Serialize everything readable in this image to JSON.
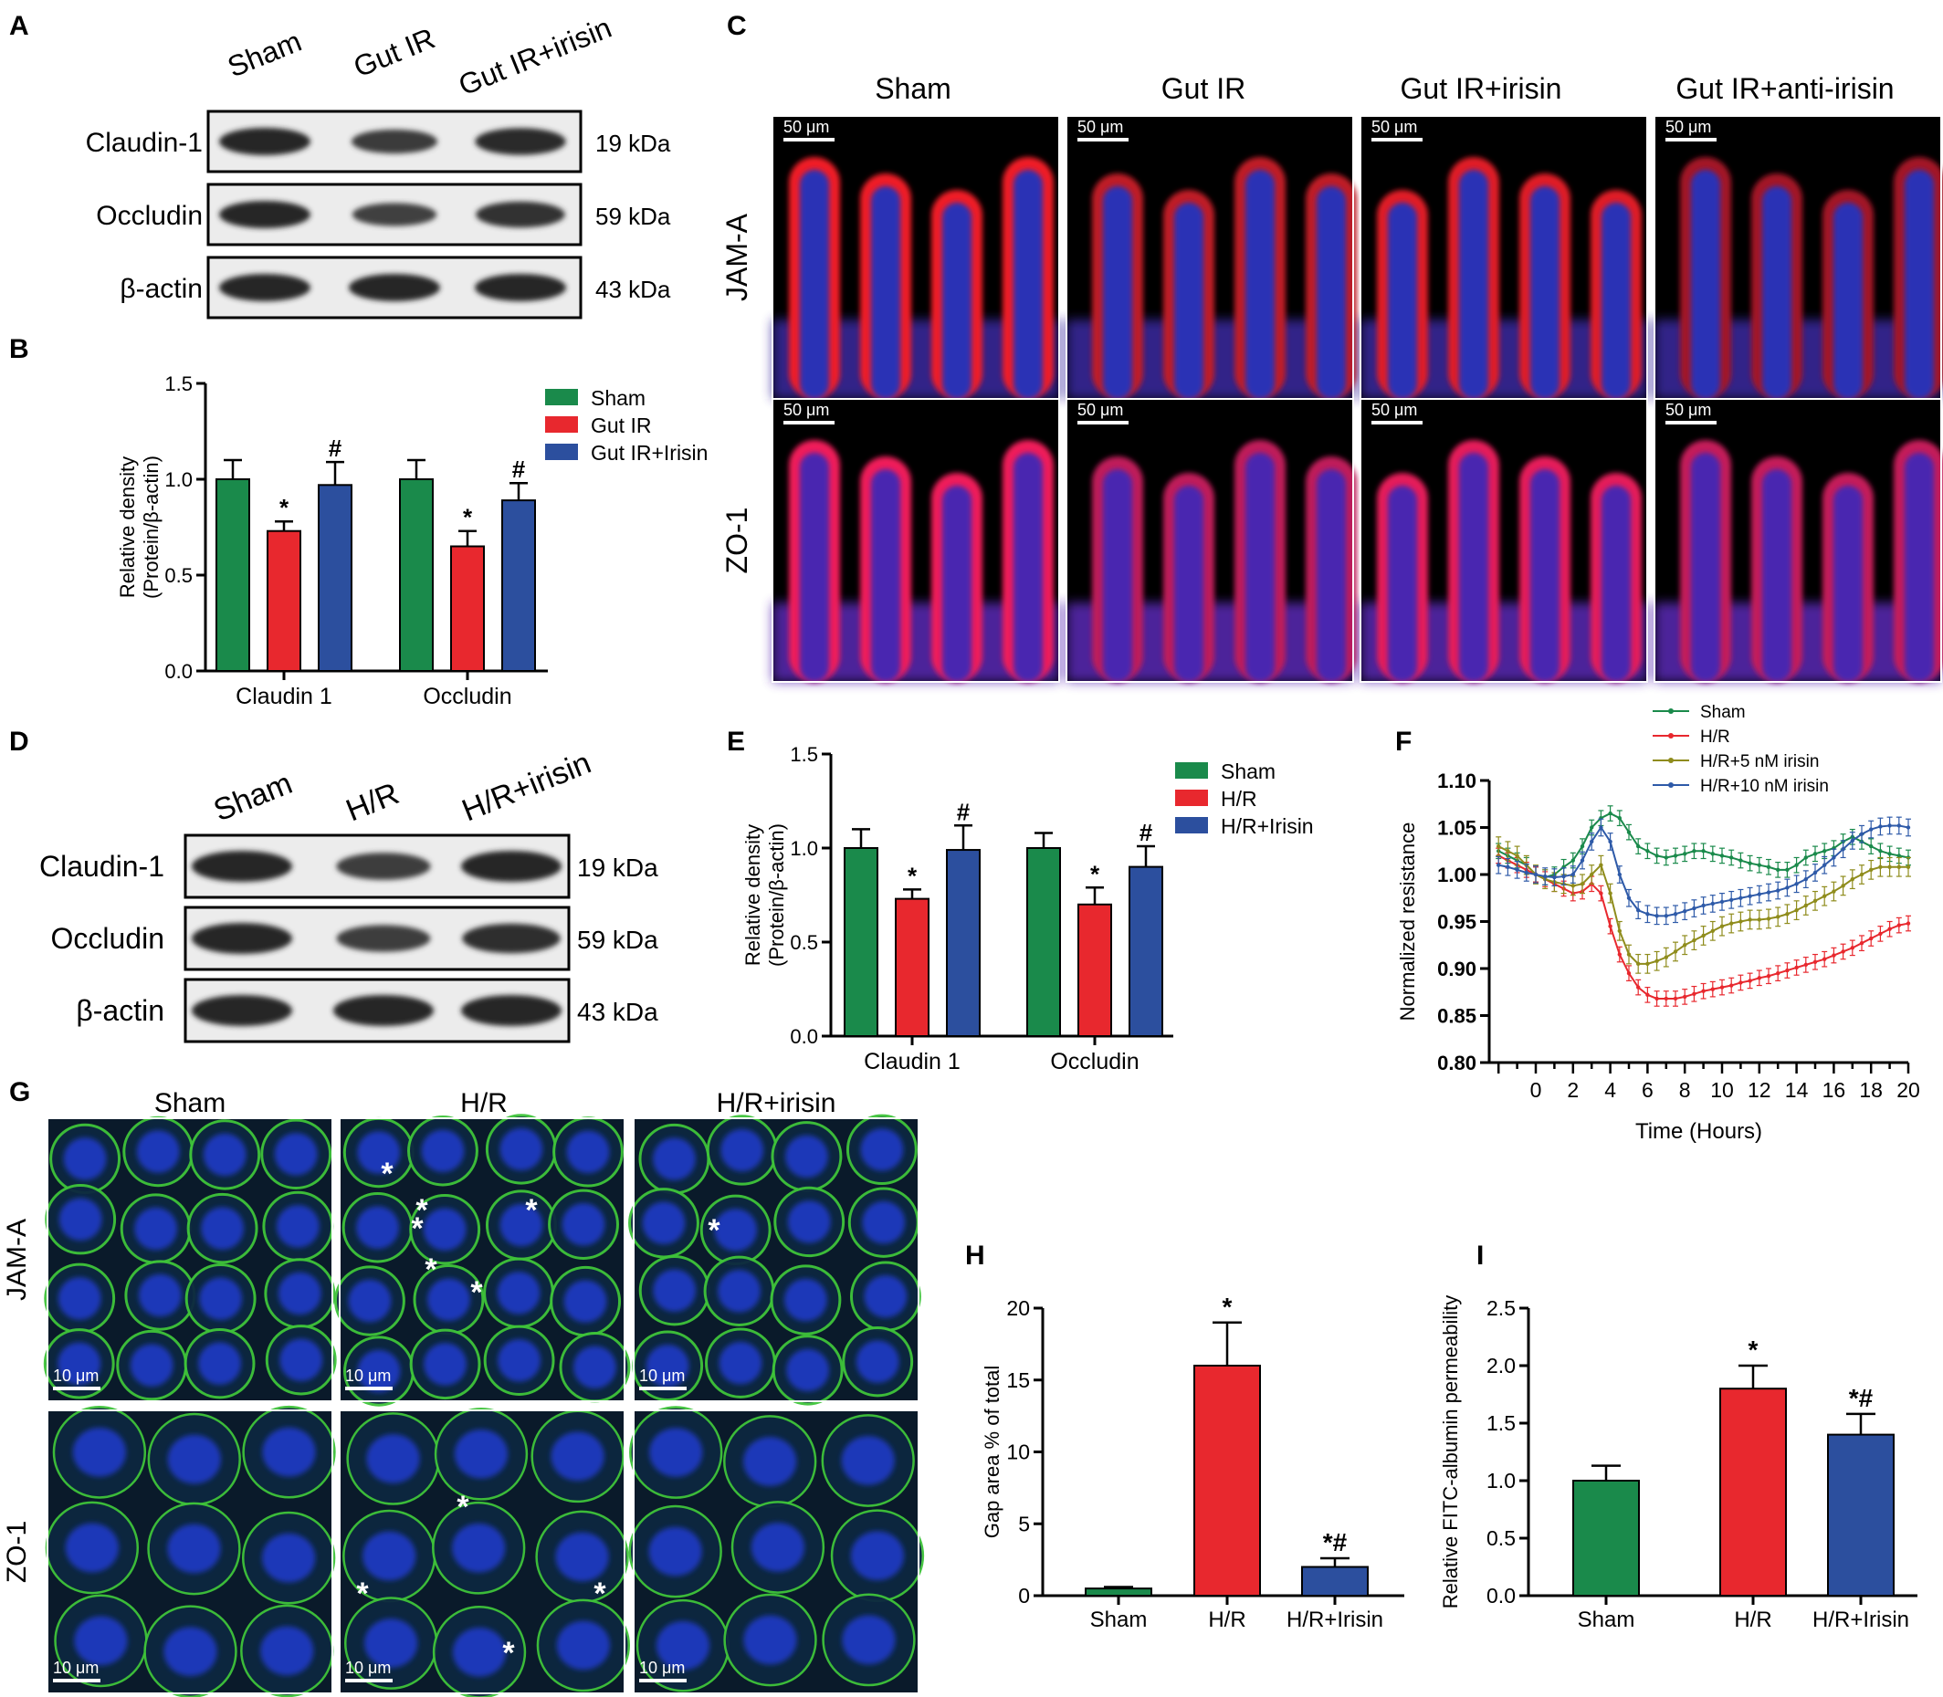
{
  "panels": {
    "A": {
      "letter": "A",
      "lanes": [
        "Sham",
        "Gut IR",
        "Gut IR+irisin"
      ],
      "rows": [
        {
          "label": "Claudin-1",
          "kda": "19 kDa",
          "intensity": [
            1.0,
            0.73,
            0.97
          ]
        },
        {
          "label": "Occludin",
          "kda": "59 kDa",
          "intensity": [
            1.0,
            0.65,
            0.89
          ]
        },
        {
          "label": "β-actin",
          "kda": "43 kDa",
          "intensity": [
            1.0,
            1.0,
            1.0
          ]
        }
      ]
    },
    "B": {
      "letter": "B",
      "chart_data": {
        "type": "bar",
        "ylabel_line1": "Relative density",
        "ylabel_line2": "(Protein/β-actin)",
        "ylim": [
          0,
          1.5
        ],
        "yticks": [
          "0.0",
          "0.5",
          "1.0",
          "1.5"
        ],
        "categories": [
          "Claudin 1",
          "Occludin"
        ],
        "legend_position": "top-right",
        "series": [
          {
            "name": "Sham",
            "color": "#1a8a4b",
            "values": [
              1.0,
              1.0
            ],
            "errors": [
              0.1,
              0.1
            ],
            "marks": [
              "",
              ""
            ]
          },
          {
            "name": "Gut IR",
            "color": "#e8282e",
            "values": [
              0.73,
              0.65
            ],
            "errors": [
              0.05,
              0.08
            ],
            "marks": [
              "*",
              "*"
            ]
          },
          {
            "name": "Gut IR+Irisin",
            "color": "#2c4f9e",
            "values": [
              0.97,
              0.89
            ],
            "errors": [
              0.12,
              0.09
            ],
            "marks": [
              "#",
              "#"
            ]
          }
        ]
      }
    },
    "C": {
      "letter": "C",
      "columns": [
        "Sham",
        "Gut IR",
        "Gut IR+irisin",
        "Gut IR+anti-irisin"
      ],
      "rows": [
        "JAM-A",
        "ZO-1"
      ],
      "scale_bar": "50 μm"
    },
    "D": {
      "letter": "D",
      "lanes": [
        "Sham",
        "H/R",
        "H/R+irisin"
      ],
      "rows": [
        {
          "label": "Claudin-1",
          "kda": "19 kDa",
          "intensity": [
            1.0,
            0.72,
            1.0
          ]
        },
        {
          "label": "Occludin",
          "kda": "59 kDa",
          "intensity": [
            1.0,
            0.7,
            0.9
          ]
        },
        {
          "label": "β-actin",
          "kda": "43 kDa",
          "intensity": [
            1.0,
            1.0,
            1.0
          ]
        }
      ]
    },
    "E": {
      "letter": "E",
      "chart_data": {
        "type": "bar",
        "ylabel_line1": "Relative density",
        "ylabel_line2": "(Protein/β-actin)",
        "ylim": [
          0,
          1.5
        ],
        "yticks": [
          "0.0",
          "0.5",
          "1.0",
          "1.5"
        ],
        "categories": [
          "Claudin 1",
          "Occludin"
        ],
        "legend_position": "top-right",
        "series": [
          {
            "name": "Sham",
            "color": "#1a8a4b",
            "values": [
              1.0,
              1.0
            ],
            "errors": [
              0.1,
              0.08
            ],
            "marks": [
              "",
              ""
            ]
          },
          {
            "name": "H/R",
            "color": "#e8282e",
            "values": [
              0.73,
              0.7
            ],
            "errors": [
              0.05,
              0.09
            ],
            "marks": [
              "*",
              "*"
            ]
          },
          {
            "name": "H/R+Irisin",
            "color": "#2c4f9e",
            "values": [
              0.99,
              0.9
            ],
            "errors": [
              0.13,
              0.11
            ],
            "marks": [
              "#",
              "#"
            ]
          }
        ]
      }
    },
    "F": {
      "letter": "F",
      "chart_data": {
        "type": "line",
        "xlabel": "Time (Hours)",
        "ylabel": "Normalized resistance",
        "ylim": [
          0.8,
          1.1
        ],
        "xlim": [
          -2.5,
          20
        ],
        "yticks": [
          "0.80",
          "0.85",
          "0.90",
          "0.95",
          "1.00",
          "1.05",
          "1.10"
        ],
        "xticks": [
          "0",
          "2",
          "4",
          "6",
          "8",
          "10",
          "12",
          "14",
          "16",
          "18",
          "20"
        ],
        "legend_position": "top",
        "x": [
          -2,
          -1.5,
          -1,
          -0.5,
          0,
          0.5,
          1,
          1.5,
          2,
          2.5,
          3,
          3.5,
          4,
          4.5,
          5,
          5.5,
          6,
          6.5,
          7,
          7.5,
          8,
          8.5,
          9,
          9.5,
          10,
          10.5,
          11,
          11.5,
          12,
          12.5,
          13,
          13.5,
          14,
          14.5,
          15,
          15.5,
          16,
          16.5,
          17,
          17.5,
          18,
          18.5,
          19,
          19.5,
          20
        ],
        "series": [
          {
            "name": "Sham",
            "color": "#1a8a4b",
            "error": 0.008,
            "values": [
              1.025,
              1.02,
              1.015,
              1.01,
              1.0,
              0.997,
              1.0,
              1.008,
              1.015,
              1.03,
              1.05,
              1.06,
              1.065,
              1.06,
              1.045,
              1.03,
              1.025,
              1.02,
              1.018,
              1.02,
              1.022,
              1.025,
              1.025,
              1.022,
              1.02,
              1.018,
              1.015,
              1.012,
              1.01,
              1.008,
              1.005,
              1.005,
              1.01,
              1.018,
              1.022,
              1.025,
              1.028,
              1.035,
              1.04,
              1.035,
              1.03,
              1.025,
              1.022,
              1.02,
              1.018
            ]
          },
          {
            "name": "H/R",
            "color": "#e8282e",
            "error": 0.008,
            "values": [
              1.02,
              1.015,
              1.01,
              1.005,
              1.0,
              0.995,
              0.99,
              0.985,
              0.98,
              0.982,
              0.99,
              0.98,
              0.945,
              0.915,
              0.895,
              0.88,
              0.872,
              0.868,
              0.868,
              0.868,
              0.87,
              0.873,
              0.876,
              0.878,
              0.88,
              0.882,
              0.885,
              0.887,
              0.89,
              0.892,
              0.895,
              0.898,
              0.901,
              0.904,
              0.907,
              0.91,
              0.914,
              0.918,
              0.922,
              0.927,
              0.932,
              0.937,
              0.942,
              0.946,
              0.948
            ]
          },
          {
            "name": "H/R+5 nM irisin",
            "color": "#8f8c1c",
            "error": 0.01,
            "values": [
              1.03,
              1.025,
              1.02,
              1.01,
              1.0,
              0.995,
              0.992,
              0.99,
              0.988,
              0.99,
              1.0,
              1.01,
              0.98,
              0.94,
              0.915,
              0.905,
              0.905,
              0.908,
              0.912,
              0.918,
              0.925,
              0.93,
              0.935,
              0.94,
              0.945,
              0.948,
              0.95,
              0.952,
              0.952,
              0.953,
              0.955,
              0.958,
              0.962,
              0.967,
              0.972,
              0.977,
              0.982,
              0.988,
              0.995,
              1.0,
              1.005,
              1.008,
              1.008,
              1.008,
              1.008
            ]
          },
          {
            "name": "H/R+10 nM irisin",
            "color": "#2e5aa8",
            "error": 0.009,
            "values": [
              1.01,
              1.008,
              1.005,
              1.002,
              1.0,
              0.998,
              0.997,
              0.998,
              1.0,
              1.015,
              1.035,
              1.05,
              1.035,
              1.0,
              0.975,
              0.962,
              0.958,
              0.956,
              0.956,
              0.958,
              0.961,
              0.964,
              0.967,
              0.969,
              0.971,
              0.973,
              0.975,
              0.977,
              0.979,
              0.981,
              0.983,
              0.986,
              0.99,
              0.995,
              1.002,
              1.01,
              1.018,
              1.027,
              1.036,
              1.043,
              1.048,
              1.051,
              1.052,
              1.052,
              1.05
            ]
          }
        ]
      }
    },
    "G": {
      "letter": "G",
      "columns": [
        "Sham",
        "H/R",
        "H/R+irisin"
      ],
      "rows": [
        "JAM-A",
        "ZO-1"
      ],
      "scale_bar": "10 μm",
      "gap_marker": "*"
    },
    "H": {
      "letter": "H",
      "chart_data": {
        "type": "bar",
        "ylabel": "Gap area % of total",
        "ylim": [
          0,
          20
        ],
        "yticks": [
          "0",
          "5",
          "10",
          "15",
          "20"
        ],
        "categories": [
          "Sham",
          "H/R",
          "H/R+Irisin"
        ],
        "values": [
          0.5,
          16,
          2
        ],
        "errors": [
          0.1,
          3,
          0.6
        ],
        "colors": [
          "#1a8a4b",
          "#e8282e",
          "#2c4f9e"
        ],
        "marks": [
          "",
          "*",
          "*#"
        ]
      }
    },
    "I": {
      "letter": "I",
      "chart_data": {
        "type": "bar",
        "ylabel": "Relative FITC-albumin permeability",
        "ylim": [
          0,
          2.5
        ],
        "yticks": [
          "0.0",
          "0.5",
          "1.0",
          "1.5",
          "2.0",
          "2.5"
        ],
        "categories": [
          "Sham",
          "H/R",
          "H/R+Irisin"
        ],
        "values": [
          1.0,
          1.8,
          1.4
        ],
        "errors": [
          0.13,
          0.2,
          0.18
        ],
        "colors": [
          "#1a8a4b",
          "#e8282e",
          "#2c4f9e"
        ],
        "marks": [
          "",
          "*",
          "*#"
        ]
      }
    }
  }
}
